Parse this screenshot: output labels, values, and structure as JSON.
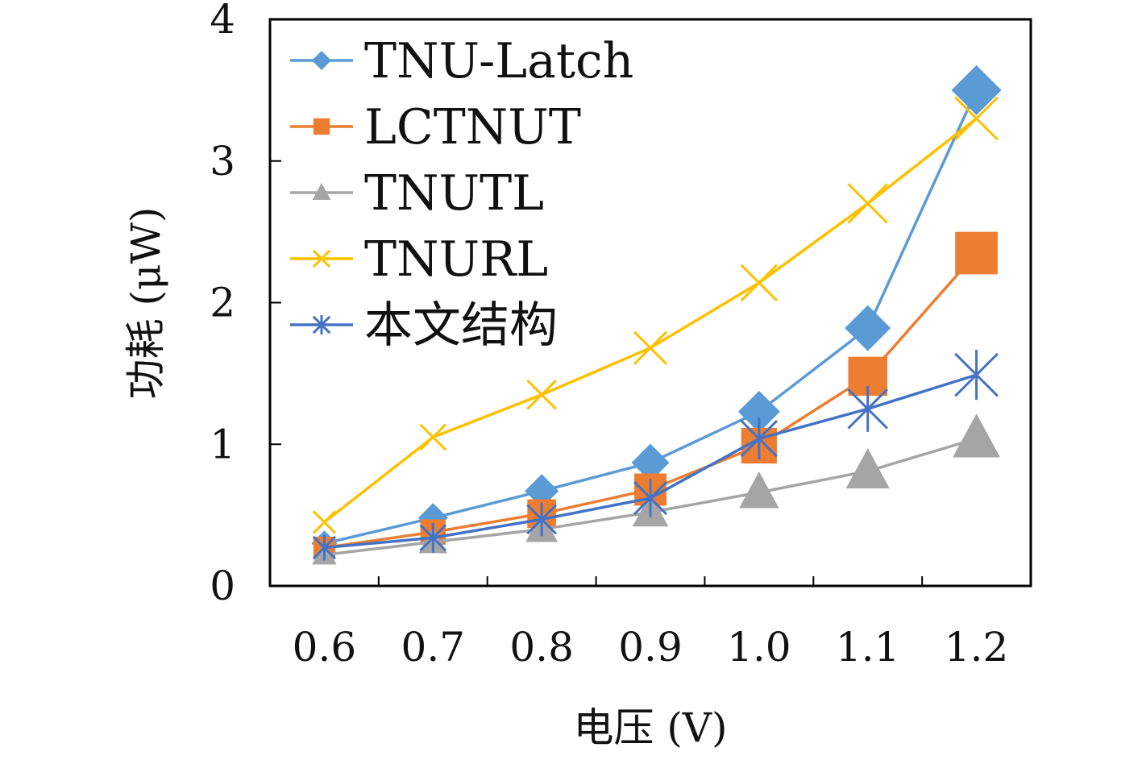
{
  "chart_data": {
    "type": "line",
    "x": [
      0.6,
      0.7,
      0.8,
      0.9,
      1.0,
      1.1,
      1.2
    ],
    "x_tick_labels": [
      "0.6",
      "0.7",
      "0.8",
      "0.9",
      "1.0",
      "1.1",
      "1.2"
    ],
    "y_ticks": [
      0,
      1,
      2,
      3,
      4
    ],
    "y_tick_labels": [
      "0",
      "1",
      "2",
      "3",
      "4"
    ],
    "ylim": [
      0,
      4
    ],
    "xlabel": "电压 (V)",
    "ylabel": "功耗 (μW)",
    "grid": false,
    "legend_position": "top-left",
    "series": [
      {
        "name": "TNU-Latch",
        "color": "#5b9bd5",
        "marker": "diamond",
        "values": [
          0.3,
          0.48,
          0.67,
          0.87,
          1.23,
          1.82,
          3.5
        ]
      },
      {
        "name": "LCTNUT",
        "color": "#ed7d31",
        "marker": "square",
        "values": [
          0.27,
          0.38,
          0.51,
          0.68,
          0.99,
          1.48,
          2.35
        ]
      },
      {
        "name": "TNUTL",
        "color": "#a5a5a5",
        "marker": "triangle",
        "values": [
          0.22,
          0.31,
          0.4,
          0.52,
          0.66,
          0.81,
          1.04
        ]
      },
      {
        "name": "TNURL",
        "color": "#ffc000",
        "marker": "x",
        "values": [
          0.45,
          1.05,
          1.35,
          1.68,
          2.14,
          2.7,
          3.3
        ]
      },
      {
        "name": "本文结构",
        "color": "#4472c4",
        "marker": "asterisk",
        "values": [
          0.27,
          0.34,
          0.47,
          0.62,
          1.04,
          1.25,
          1.49
        ]
      }
    ]
  }
}
